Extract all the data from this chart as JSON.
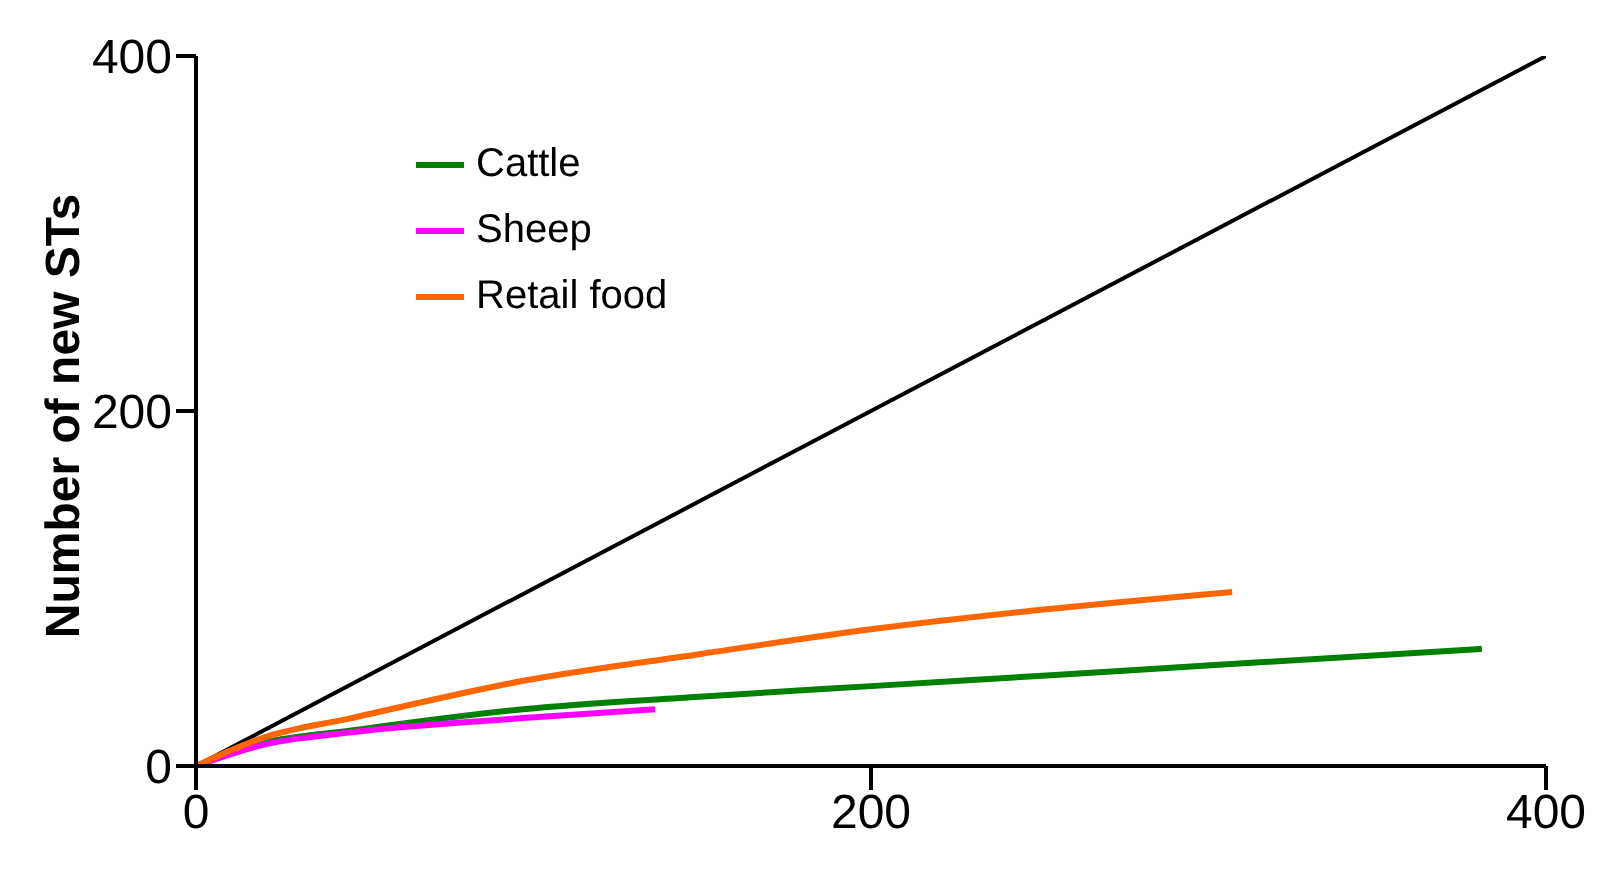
{
  "chart_data": {
    "type": "line",
    "ylabel": "Number of new STs",
    "xlim": [
      0,
      400
    ],
    "ylim": [
      0,
      400
    ],
    "xticks": [
      0,
      200,
      400
    ],
    "yticks": [
      0,
      200,
      400
    ],
    "grid": false,
    "legend": "top left",
    "marker": "none",
    "line_style": "solid",
    "series": [
      {
        "color": "#000000",
        "x": [
          0,
          400
        ],
        "values": [
          0,
          400
        ]
      },
      {
        "name": "Cattle",
        "color": "#008000",
        "x": [
          0,
          20,
          46,
          97,
          149,
          200,
          252,
          303,
          381
        ],
        "values": [
          0,
          13,
          20,
          32,
          39,
          45,
          51,
          57,
          66
        ]
      },
      {
        "name": "Sheep",
        "color": "#ff00ff",
        "x": [
          0,
          20,
          46,
          97,
          136
        ],
        "values": [
          0,
          12,
          19,
          27,
          32
        ]
      },
      {
        "name": "Retail food",
        "color": "#ff6600",
        "x": [
          0,
          20,
          46,
          97,
          149,
          200,
          307
        ],
        "values": [
          0,
          16,
          27,
          48,
          63,
          77,
          98
        ]
      }
    ]
  }
}
